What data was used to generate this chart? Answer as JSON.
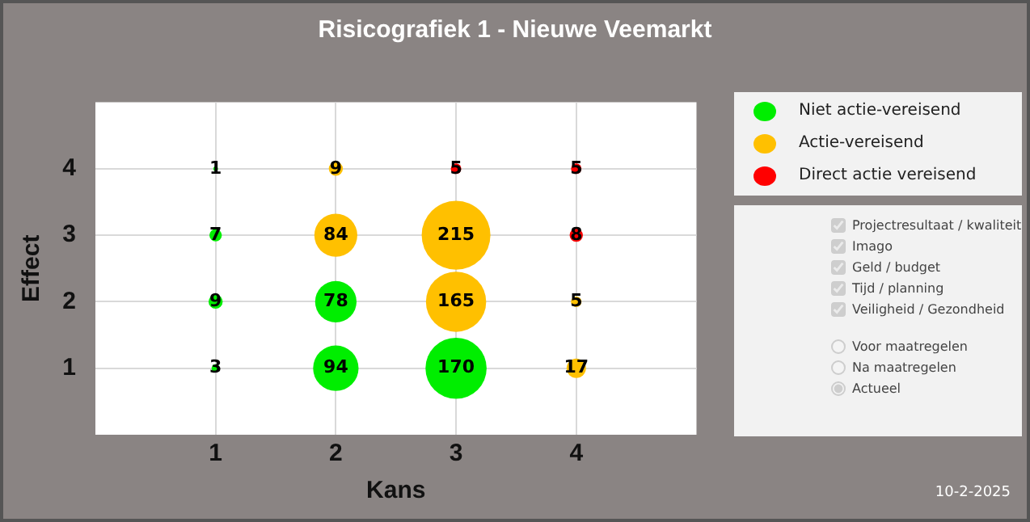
{
  "chart_data": {
    "type": "bubble",
    "title": "Risicografiek 1 - Nieuwe Veemarkt",
    "xlabel": "Kans",
    "ylabel": "Effect",
    "xlim": [
      0,
      5
    ],
    "xticks": [
      1,
      2,
      3,
      4
    ],
    "ylim": [
      0,
      5
    ],
    "yticks": [
      1,
      2,
      3,
      4
    ],
    "grid": true,
    "legend": "top right",
    "series": [
      {
        "name": "Niet actie-vereisend",
        "color": "#00ee00",
        "x": [
          1,
          1,
          1,
          1,
          2,
          2,
          3
        ],
        "values": [
          4,
          3,
          2,
          1,
          2,
          1,
          1
        ],
        "sizes": [
          1,
          7,
          9,
          3,
          78,
          94,
          170
        ],
        "value_labels": [
          "1",
          "7",
          "9",
          "3",
          "78",
          "94",
          "170"
        ]
      },
      {
        "name": "Actie-vereisend",
        "color": "#ffc000",
        "x": [
          2,
          2,
          3,
          3,
          4,
          4
        ],
        "values": [
          4,
          3,
          3,
          2,
          2,
          1
        ],
        "sizes": [
          9,
          84,
          215,
          165,
          5,
          17
        ],
        "value_labels": [
          "9",
          "84",
          "215",
          "165",
          "5",
          "17"
        ]
      },
      {
        "name": "Direct actie vereisend",
        "color": "#ff0000",
        "x": [
          3,
          4,
          4
        ],
        "values": [
          4,
          4,
          3
        ],
        "sizes": [
          5,
          5,
          8
        ],
        "value_labels": [
          "5",
          "5",
          "8"
        ]
      }
    ],
    "annotations": [
      "Projectresultaat / kwaliteit",
      "Imago",
      "Geld / budget",
      "Tijd / planning",
      "Veiligheid / Gezondheid",
      "Voor maatregelen",
      "Na maatregelen",
      "Actueel",
      "10-2-2025"
    ]
  }
}
